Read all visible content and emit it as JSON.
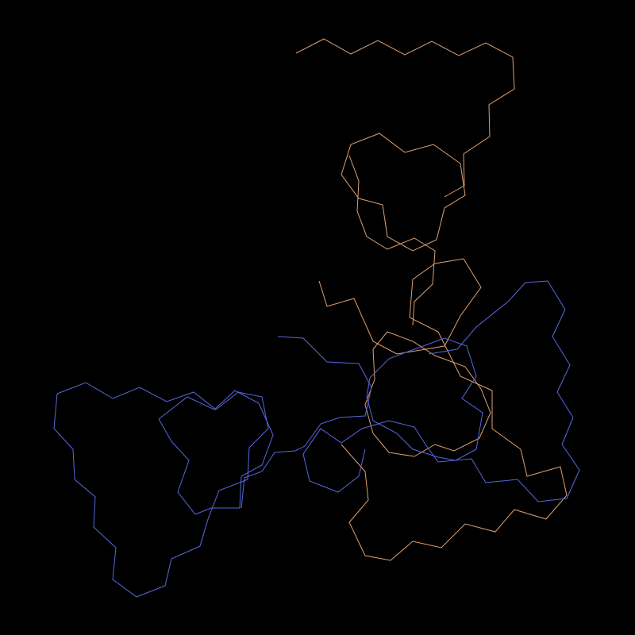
{
  "background": "#000000",
  "palette": {
    "orange": "#e0a070",
    "blue": "#5868e0"
  },
  "paths": [
    {
      "name": "orange-top-lobe-outer",
      "color": "orange"
    },
    {
      "name": "orange-top-lobe-inner",
      "color": "orange"
    },
    {
      "name": "orange-stem",
      "color": "orange"
    },
    {
      "name": "orange-center-ring",
      "color": "orange"
    },
    {
      "name": "orange-right-lobe",
      "color": "orange"
    },
    {
      "name": "blue-left-lobe-outer",
      "color": "blue"
    },
    {
      "name": "blue-left-ring",
      "color": "blue"
    },
    {
      "name": "blue-bridge",
      "color": "blue"
    },
    {
      "name": "blue-center-ring",
      "color": "blue"
    },
    {
      "name": "blue-right-lobe",
      "color": "blue"
    }
  ]
}
